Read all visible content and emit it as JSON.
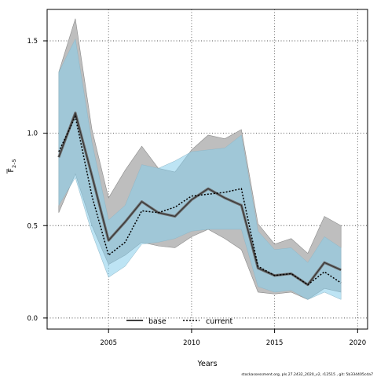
{
  "chart_data": {
    "type": "line",
    "xlabel": "Years",
    "ylabel": "F",
    "ylabel_sub": "2–5",
    "xlim": [
      2001.3,
      2020.6
    ],
    "ylim": [
      -0.06,
      1.67
    ],
    "xticks": [
      2005,
      2010,
      2015,
      2020
    ],
    "yticks": [
      0.0,
      0.5,
      1.0,
      1.5
    ],
    "xtick_labels": [
      "2005",
      "2010",
      "2015",
      "2020"
    ],
    "ytick_labels": [
      "0.0",
      "0.5",
      "1.0",
      "1.5"
    ],
    "grid": true,
    "legend_position": "bottom",
    "x": [
      2002,
      2003,
      2004,
      2005,
      2006,
      2007,
      2008,
      2009,
      2010,
      2011,
      2012,
      2013,
      2014,
      2015,
      2016,
      2017,
      2018,
      2019
    ],
    "series": [
      {
        "name": "base",
        "line_color": "#000000",
        "band_color": "#bebebe",
        "values": [
          0.87,
          1.11,
          0.77,
          0.42,
          0.52,
          0.63,
          0.57,
          0.55,
          0.64,
          0.7,
          0.65,
          0.61,
          0.27,
          0.23,
          0.24,
          0.18,
          0.3,
          0.26
        ],
        "lower": [
          0.57,
          0.78,
          0.5,
          0.29,
          0.34,
          0.41,
          0.39,
          0.38,
          0.44,
          0.48,
          0.43,
          0.37,
          0.14,
          0.13,
          0.14,
          0.1,
          0.16,
          0.14
        ],
        "upper": [
          1.33,
          1.62,
          1.02,
          0.65,
          0.8,
          0.93,
          0.81,
          0.79,
          0.91,
          0.99,
          0.97,
          1.02,
          0.51,
          0.4,
          0.43,
          0.35,
          0.55,
          0.5
        ]
      },
      {
        "name": "current",
        "line_color": "#000000",
        "band_color": "#87ceeb",
        "values": [
          0.9,
          1.09,
          0.66,
          0.34,
          0.41,
          0.58,
          0.57,
          0.6,
          0.66,
          0.67,
          0.68,
          0.7,
          0.28,
          0.23,
          0.24,
          0.18,
          0.25,
          0.19
        ],
        "lower": [
          0.61,
          0.76,
          0.46,
          0.22,
          0.28,
          0.4,
          0.41,
          0.43,
          0.47,
          0.48,
          0.48,
          0.48,
          0.17,
          0.14,
          0.15,
          0.1,
          0.14,
          0.1
        ],
        "upper": [
          1.33,
          1.51,
          0.95,
          0.53,
          0.61,
          0.83,
          0.81,
          0.85,
          0.9,
          0.91,
          0.92,
          0.99,
          0.47,
          0.37,
          0.38,
          0.3,
          0.44,
          0.38
        ]
      }
    ]
  },
  "footer": "stockassessment.org, pls.27.2432_2020_v2, r12515 , git: 5b334405cda7"
}
